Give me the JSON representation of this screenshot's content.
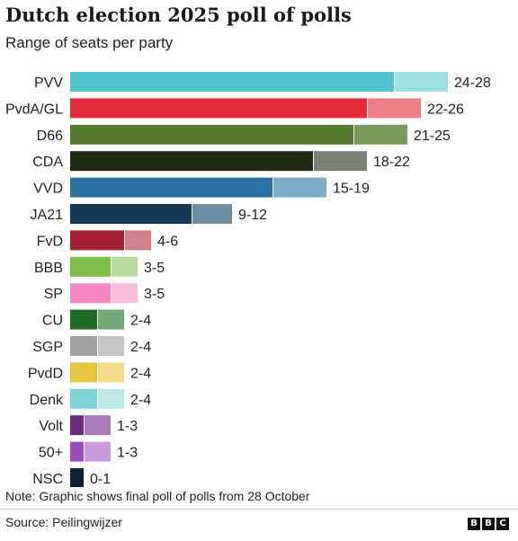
{
  "header": {
    "title": "Dutch election 2025 poll of polls",
    "subtitle": "Range of seats per party"
  },
  "footer": {
    "note": "Note: Graphic shows final poll of polls from 28 October",
    "source": "Source: Peilingwijzer",
    "logo_letters": [
      "B",
      "B",
      "C"
    ]
  },
  "chart_data": {
    "type": "bar",
    "orientation": "horizontal",
    "title": "Dutch election 2025 poll of polls",
    "subtitle": "Range of seats per party",
    "xlim": [
      0,
      28
    ],
    "grid": false,
    "categories": [
      "PVV",
      "PvdA/GL",
      "D66",
      "CDA",
      "VVD",
      "JA21",
      "FvD",
      "BBB",
      "SP",
      "CU",
      "SGP",
      "PvdD",
      "Denk",
      "Volt",
      "50+",
      "NSC"
    ],
    "min": [
      24,
      22,
      21,
      18,
      15,
      9,
      4,
      3,
      3,
      2,
      2,
      2,
      2,
      1,
      1,
      0
    ],
    "max": [
      28,
      26,
      25,
      22,
      19,
      12,
      6,
      5,
      5,
      4,
      4,
      4,
      4,
      3,
      3,
      1
    ],
    "labels": [
      "24-28",
      "22-26",
      "21-25",
      "18-22",
      "15-19",
      "9-12",
      "4-6",
      "3-5",
      "3-5",
      "2-4",
      "2-4",
      "2-4",
      "2-4",
      "1-3",
      "1-3",
      "0-1"
    ],
    "colors": [
      "#4fc3cd",
      "#e32b3b",
      "#557a2e",
      "#1e2a12",
      "#2a72a3",
      "#153a57",
      "#a32033",
      "#7fbe4b",
      "#f588c0",
      "#1e6b23",
      "#a0a0a0",
      "#e6c53e",
      "#7fd4d6",
      "#6b2a82",
      "#9b4dbf",
      "#0f2236"
    ],
    "range_colors": [
      "#9bdfe3",
      "#f08088",
      "#7a9a5c",
      "#7a8275",
      "#7eacc8",
      "#6f8da0",
      "#d08088",
      "#b8dca0",
      "#f9bcd9",
      "#74a878",
      "#c6c6c6",
      "#f1dc8c",
      "#bce8e8",
      "#a87ab8",
      "#c99ad9",
      "#0f2236"
    ]
  }
}
